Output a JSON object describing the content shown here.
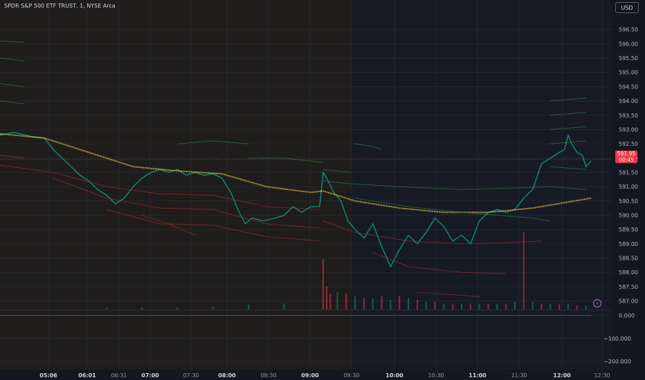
{
  "header": {
    "title": "SPDR S&P 500 ETF TRUST, 1, NYSE Arca",
    "currency_label": "USD"
  },
  "last_price": {
    "value": "591.95",
    "countdown": "00:45",
    "color": "#f23645"
  },
  "icons": {
    "alert": "lightning-bolt-icon"
  },
  "colors": {
    "premarket_bg": "#1f1d1c",
    "market_bg": "#161a25",
    "up": "#089981",
    "down": "#f23645",
    "vwap": "#f5d020",
    "band_upper": "#26a641",
    "band_lower": "#d9282f"
  },
  "chart_data": [
    {
      "type": "line",
      "name": "price-pane",
      "x_tick_labels": [
        "05:06",
        "06:01",
        "06:31",
        "07:00",
        "07:30",
        "08:00",
        "08:30",
        "09:00",
        "09:30",
        "10:00",
        "10:30",
        "11:00",
        "11:30",
        "12:00",
        "12:30"
      ],
      "y_tick_labels": [
        "596.50",
        "596.00",
        "595.50",
        "595.00",
        "594.50",
        "594.00",
        "593.50",
        "593.00",
        "592.50",
        "592.00",
        "591.50",
        "591.00",
        "590.50",
        "590.00",
        "589.50",
        "589.00",
        "588.50",
        "588.00",
        "587.50",
        "587.00"
      ],
      "ylim": [
        586.7,
        597.0
      ],
      "grid": true,
      "series": [
        {
          "values": [
            [
              0,
              592.8
            ],
            [
              8,
              592.9
            ],
            [
              18,
              592.75
            ],
            [
              25,
              592.7
            ],
            [
              30,
              592.3
            ],
            [
              35,
              592.0
            ],
            [
              40,
              591.7
            ],
            [
              45,
              591.4
            ],
            [
              50,
              591.2
            ],
            [
              55,
              590.9
            ],
            [
              60,
              590.7
            ],
            [
              65,
              590.4
            ],
            [
              70,
              590.6
            ],
            [
              75,
              591.0
            ],
            [
              80,
              591.3
            ],
            [
              85,
              591.5
            ],
            [
              90,
              591.6
            ],
            [
              95,
              591.5
            ],
            [
              100,
              591.6
            ],
            [
              105,
              591.4
            ],
            [
              110,
              591.5
            ],
            [
              115,
              591.4
            ],
            [
              120,
              591.45
            ],
            [
              125,
              591.3
            ],
            [
              130,
              590.8
            ],
            [
              134,
              590.2
            ],
            [
              138,
              589.7
            ],
            [
              142,
              589.9
            ],
            [
              148,
              589.8
            ],
            [
              155,
              589.9
            ],
            [
              160,
              590.0
            ],
            [
              165,
              590.3
            ],
            [
              170,
              590.1
            ],
            [
              175,
              590.3
            ],
            [
              180,
              590.3
            ],
            [
              182,
              591.5
            ],
            [
              184,
              591.3
            ],
            [
              188,
              590.8
            ],
            [
              192,
              590.5
            ],
            [
              196,
              589.8
            ],
            [
              200,
              589.5
            ],
            [
              205,
              589.2
            ],
            [
              210,
              589.7
            ],
            [
              215,
              588.9
            ],
            [
              220,
              588.2
            ],
            [
              225,
              588.8
            ],
            [
              230,
              589.3
            ],
            [
              235,
              589.0
            ],
            [
              240,
              589.4
            ],
            [
              245,
              589.9
            ],
            [
              250,
              589.6
            ],
            [
              255,
              589.1
            ],
            [
              260,
              589.3
            ],
            [
              265,
              589.0
            ],
            [
              270,
              589.8
            ],
            [
              275,
              590.1
            ],
            [
              280,
              590.2
            ],
            [
              285,
              590.1
            ],
            [
              290,
              590.2
            ],
            [
              295,
              590.6
            ],
            [
              300,
              590.9
            ],
            [
              305,
              591.8
            ],
            [
              310,
              592.0
            ],
            [
              315,
              592.2
            ],
            [
              318,
              592.3
            ],
            [
              320,
              592.8
            ],
            [
              322,
              592.5
            ],
            [
              325,
              592.2
            ],
            [
              328,
              592.1
            ],
            [
              330,
              591.7
            ],
            [
              333,
              591.9
            ]
          ]
        },
        {
          "values": [
            [
              0,
              592.85
            ],
            [
              25,
              592.7
            ],
            [
              50,
              592.2
            ],
            [
              75,
              591.7
            ],
            [
              100,
              591.55
            ],
            [
              125,
              591.45
            ],
            [
              150,
              591.0
            ],
            [
              175,
              590.8
            ],
            [
              182,
              590.85
            ],
            [
              200,
              590.5
            ],
            [
              225,
              590.25
            ],
            [
              250,
              590.1
            ],
            [
              275,
              590.1
            ],
            [
              300,
              590.25
            ],
            [
              333,
              590.6
            ]
          ]
        },
        {
          "values": [
            [
              0,
              596.1
            ],
            [
              14,
              596.05
            ]
          ]
        },
        {
          "values": [
            [
              0,
              595.5
            ],
            [
              14,
              595.4
            ]
          ]
        },
        {
          "values": [
            [
              0,
              594.6
            ],
            [
              14,
              594.5
            ]
          ]
        },
        {
          "values": [
            [
              0,
              594.0
            ],
            [
              14,
              593.9
            ]
          ]
        },
        {
          "values": [
            [
              0,
              592.1
            ],
            [
              14,
              592.0
            ]
          ]
        },
        {
          "values": [
            [
              0,
              591.75
            ],
            [
              30,
              591.5
            ],
            [
              60,
              591.0
            ],
            [
              90,
              590.75
            ],
            [
              120,
              590.7
            ],
            [
              150,
              590.3
            ],
            [
              180,
              590.2
            ]
          ]
        },
        {
          "values": [
            [
              30,
              591.3
            ],
            [
              60,
              590.6
            ],
            [
              90,
              590.25
            ],
            [
              120,
              590.2
            ],
            [
              150,
              589.7
            ],
            [
              180,
              589.55
            ]
          ]
        },
        {
          "values": [
            [
              60,
              590.2
            ],
            [
              90,
              589.7
            ],
            [
              120,
              589.65
            ],
            [
              150,
              589.25
            ],
            [
              180,
              589.1
            ]
          ]
        },
        {
          "values": [
            [
              80,
              590.0
            ],
            [
              95,
              589.7
            ],
            [
              110,
              589.3
            ]
          ]
        },
        {
          "values": [
            [
              100,
              592.5
            ],
            [
              120,
              592.6
            ],
            [
              140,
              592.5
            ]
          ]
        },
        {
          "values": [
            [
              140,
              592.0
            ],
            [
              160,
              592.0
            ],
            [
              182,
              591.85
            ]
          ]
        },
        {
          "values": [
            [
              182,
              591.6
            ],
            [
              198,
              591.5
            ]
          ]
        },
        {
          "values": [
            [
              182,
              591.2
            ],
            [
              198,
              591.1
            ],
            [
              225,
              591.0
            ],
            [
              260,
              590.9
            ],
            [
              290,
              590.95
            ],
            [
              310,
              591.0
            ]
          ]
        },
        {
          "values": [
            [
              200,
              590.6
            ],
            [
              230,
              590.3
            ],
            [
              260,
              590.1
            ],
            [
              300,
              589.9
            ],
            [
              310,
              589.8
            ]
          ]
        },
        {
          "values": [
            [
              182,
              589.8
            ],
            [
              200,
              589.4
            ],
            [
              230,
              589.1
            ],
            [
              260,
              589.0
            ],
            [
              290,
              589.05
            ],
            [
              305,
              589.1
            ]
          ]
        },
        {
          "values": [
            [
              210,
              588.7
            ],
            [
              230,
              588.2
            ],
            [
              260,
              588.0
            ],
            [
              285,
              587.95
            ]
          ]
        },
        {
          "values": [
            [
              235,
              587.3
            ],
            [
              260,
              587.2
            ],
            [
              270,
              587.15
            ]
          ]
        },
        {
          "values": [
            [
              200,
              592.5
            ],
            [
              210,
              592.4
            ],
            [
              215,
              592.3
            ]
          ]
        },
        {
          "values": [
            [
              310,
              593.5
            ],
            [
              330,
              593.6
            ]
          ]
        },
        {
          "values": [
            [
              310,
              593.0
            ],
            [
              330,
              593.1
            ]
          ]
        },
        {
          "values": [
            [
              310,
              592.5
            ],
            [
              330,
              592.6
            ]
          ]
        },
        {
          "values": [
            [
              310,
              594.0
            ],
            [
              330,
              594.1
            ]
          ]
        },
        {
          "values": [
            [
              310,
              591.7
            ],
            [
              330,
              591.6
            ]
          ]
        },
        {
          "values": [
            [
              310,
              591.0
            ],
            [
              330,
              590.9
            ]
          ]
        }
      ]
    },
    {
      "type": "bar",
      "name": "volume",
      "series": [
        {
          "values": [
            [
              60,
              0.1
            ],
            [
              80,
              0.1
            ],
            [
              100,
              0.1
            ],
            [
              120,
              0.15
            ],
            [
              140,
              0.25
            ],
            [
              160,
              0.3
            ],
            [
              182,
              2.6
            ],
            [
              184,
              1.2
            ],
            [
              186,
              0.8
            ],
            [
              190,
              0.9
            ],
            [
              195,
              0.8
            ],
            [
              200,
              0.7
            ],
            [
              205,
              0.6
            ],
            [
              210,
              0.6
            ],
            [
              215,
              0.7
            ],
            [
              220,
              0.5
            ],
            [
              225,
              0.7
            ],
            [
              230,
              0.6
            ],
            [
              235,
              0.5
            ],
            [
              240,
              0.4
            ],
            [
              245,
              0.4
            ],
            [
              250,
              0.3
            ],
            [
              255,
              0.3
            ],
            [
              260,
              0.3
            ],
            [
              265,
              0.3
            ],
            [
              270,
              0.3
            ],
            [
              275,
              0.3
            ],
            [
              280,
              0.3
            ],
            [
              285,
              0.3
            ],
            [
              290,
              0.4
            ],
            [
              295,
              4.0
            ],
            [
              300,
              0.4
            ],
            [
              305,
              0.3
            ],
            [
              310,
              0.3
            ],
            [
              315,
              0.3
            ],
            [
              320,
              0.3
            ],
            [
              325,
              0.2
            ],
            [
              330,
              0.2
            ]
          ]
        }
      ]
    },
    {
      "type": "line",
      "name": "oscillator-pane",
      "y_tick_labels": [
        "0.000",
        "−100.000",
        "−200.000"
      ],
      "ylim": [
        -215,
        20
      ],
      "series": [
        {
          "values": [
            [
              0,
              0
            ],
            [
              333,
              0
            ]
          ]
        }
      ]
    }
  ]
}
